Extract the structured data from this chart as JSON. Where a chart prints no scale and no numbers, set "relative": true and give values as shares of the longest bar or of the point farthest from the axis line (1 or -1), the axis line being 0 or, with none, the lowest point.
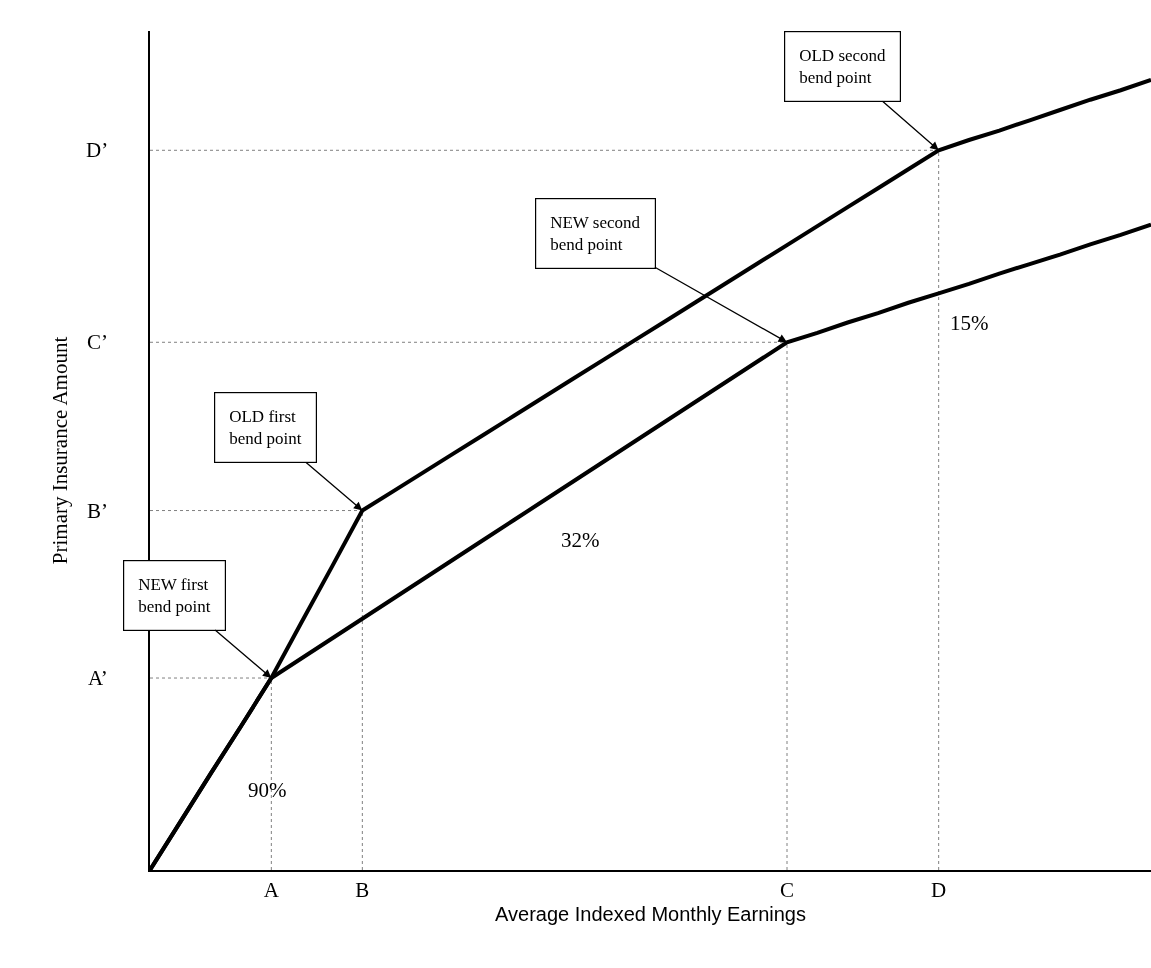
{
  "chart_data": {
    "type": "line",
    "relative": true,
    "xlabel": "Average Indexed Monthly Earnings",
    "ylabel": "Primary Insurance Amount",
    "categories": [
      null,
      null,
      null,
      null,
      "A",
      null,
      null,
      "B",
      null,
      null,
      null,
      null,
      null,
      null,
      null,
      null,
      null,
      null,
      null,
      null,
      null,
      "C",
      null,
      null,
      null,
      null,
      "D",
      null,
      null,
      null,
      null,
      null,
      null,
      null
    ],
    "series": [
      {
        "color": "#000000",
        "values": [
          0,
          0.061,
          0.122,
          0.182,
          0.243,
          0.314,
          0.384,
          0.455,
          0.479,
          0.503,
          0.527,
          0.551,
          0.575,
          0.599,
          0.623,
          0.647,
          0.671,
          0.695,
          0.719,
          0.743,
          0.767,
          0.791,
          0.815,
          0.839,
          0.863,
          0.887,
          0.911,
          0.924,
          0.936,
          0.949,
          0.962,
          0.975,
          0.987,
          1.0
        ]
      },
      {
        "color": "#000000",
        "values": [
          0,
          0.061,
          0.122,
          0.182,
          0.243,
          0.268,
          0.293,
          0.318,
          0.343,
          0.368,
          0.393,
          0.418,
          0.443,
          0.468,
          0.493,
          0.518,
          0.543,
          0.568,
          0.593,
          0.618,
          0.643,
          0.668,
          0.68,
          0.693,
          0.705,
          0.718,
          0.73,
          0.742,
          0.755,
          0.767,
          0.779,
          0.792,
          0.804,
          0.817
        ]
      }
    ],
    "ref_lines": [
      {
        "axis": "y",
        "value": 0.243,
        "label": "A’",
        "color": "#808080",
        "line_style": "dotted"
      },
      {
        "axis": "y",
        "value": 0.455,
        "label": "B’",
        "color": "#808080",
        "line_style": "dotted"
      },
      {
        "axis": "y",
        "value": 0.668,
        "label": "C’",
        "color": "#808080",
        "line_style": "dotted"
      },
      {
        "axis": "y",
        "value": 0.911,
        "label": "D’",
        "color": "#808080",
        "line_style": "dotted"
      },
      {
        "axis": "x",
        "value": "A",
        "color": "#808080",
        "line_style": "dotted"
      },
      {
        "axis": "x",
        "value": "B",
        "color": "#808080",
        "line_style": "dotted"
      },
      {
        "axis": "x",
        "value": "C",
        "color": "#808080",
        "line_style": "dotted"
      },
      {
        "axis": "x",
        "value": "D",
        "color": "#808080",
        "line_style": "dotted"
      }
    ],
    "annotations": [
      {
        "text": "OLD second\nbend point",
        "x": "D",
        "y": 0.911
      },
      {
        "text": "NEW second\nbend point",
        "x": "C",
        "y": 0.668
      },
      {
        "text": "OLD first\nbend point",
        "x": "B",
        "y": 0.455
      },
      {
        "text": "NEW first\nbend point",
        "x": "A",
        "y": 0.243
      },
      "90%",
      "32%",
      "15%"
    ],
    "grid": false,
    "marker": "none",
    "line_style": "solid"
  }
}
